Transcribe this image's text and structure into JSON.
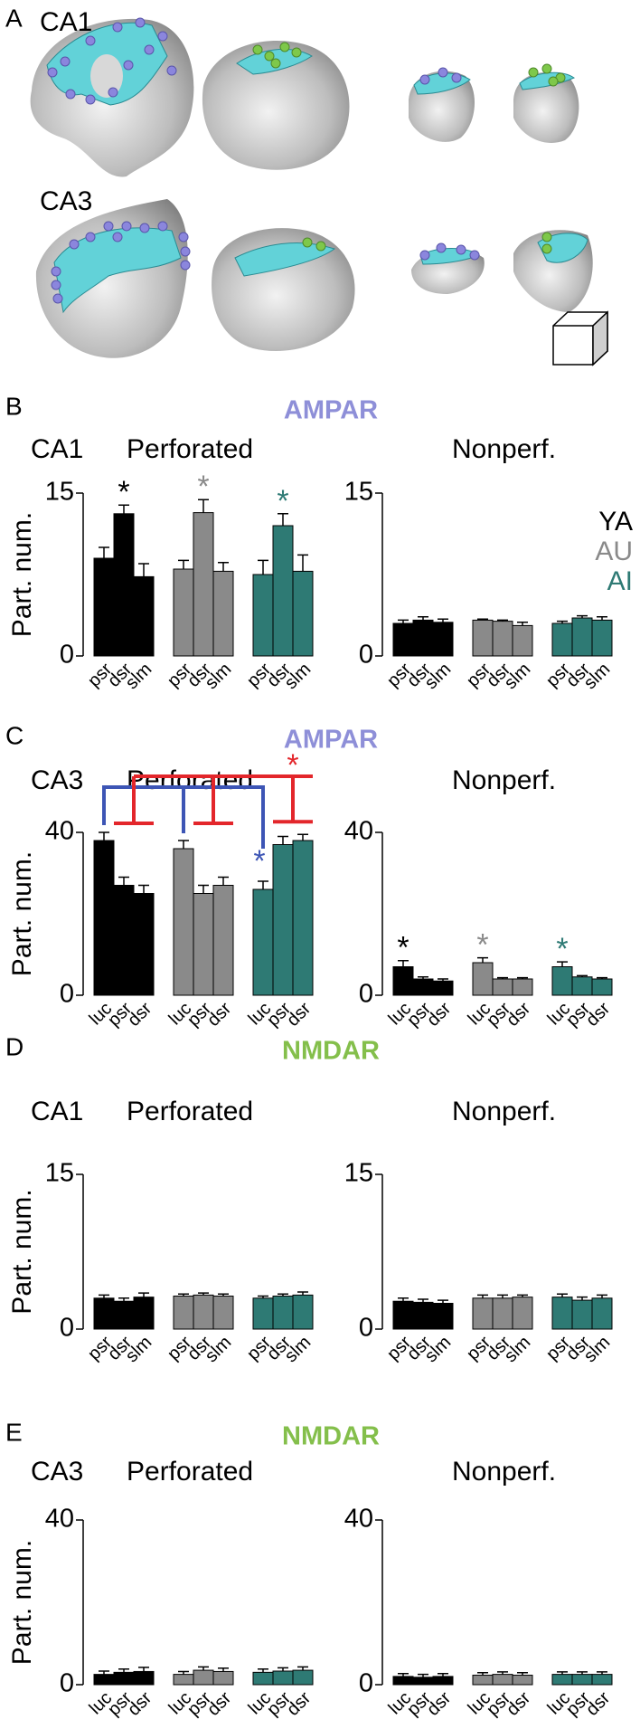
{
  "figure": {
    "panel_a": {
      "label": "A",
      "rows": [
        "CA1",
        "CA3"
      ]
    },
    "sections": [
      {
        "label": "B",
        "receptor": "AMPAR",
        "color": "#8e8fd8"
      },
      {
        "label": "C",
        "receptor": "AMPAR",
        "color": "#8e8fd8"
      },
      {
        "label": "D",
        "receptor": "NMDAR",
        "color": "#84bf4b"
      },
      {
        "label": "E",
        "receptor": "NMDAR",
        "color": "#84bf4b"
      }
    ]
  },
  "chart_data": [
    {
      "type": "bar",
      "region": "CA1",
      "title": "Perforated",
      "ylabel": "Part. num.",
      "categories": [
        "psr",
        "dsr",
        "slm"
      ],
      "ylim": [
        0,
        15
      ],
      "yticks": [
        0,
        15
      ],
      "series": [
        {
          "color": "#000000",
          "values": [
            9,
            13.1,
            7.3
          ],
          "errors": [
            1,
            0.8,
            1.2
          ],
          "stars": [
            null,
            "*",
            null
          ]
        },
        {
          "color": "#8a8a8a",
          "values": [
            8,
            13.2,
            7.8
          ],
          "errors": [
            0.8,
            1.2,
            0.8
          ],
          "stars": [
            null,
            "*",
            null
          ]
        },
        {
          "color": "#2e7a74",
          "values": [
            7.5,
            12,
            7.8
          ],
          "errors": [
            1.3,
            1.1,
            1.5
          ],
          "stars": [
            null,
            "*",
            null
          ]
        }
      ]
    },
    {
      "type": "bar",
      "title": "Nonperf.",
      "legend": "upper right",
      "categories": [
        "psr",
        "dsr",
        "slm"
      ],
      "ylim": [
        0,
        15
      ],
      "yticks": [
        0,
        15
      ],
      "series": [
        {
          "name": "YA",
          "color": "#000000",
          "values": [
            3,
            3.3,
            3.1
          ],
          "errors": [
            0.3,
            0.3,
            0.3
          ]
        },
        {
          "name": "AU",
          "color": "#8a8a8a",
          "values": [
            3.3,
            3.2,
            2.8
          ],
          "errors": [
            0.1,
            0.1,
            0.3
          ]
        },
        {
          "name": "AI",
          "color": "#2e7a74",
          "values": [
            3,
            3.5,
            3.3
          ],
          "errors": [
            0.2,
            0.2,
            0.3
          ]
        }
      ]
    },
    {
      "type": "bar",
      "region": "CA3",
      "title": "Perforated",
      "ylabel": "Part. num.",
      "categories": [
        "luc",
        "psr",
        "dsr"
      ],
      "ylim": [
        0,
        40
      ],
      "yticks": [
        0,
        40
      ],
      "series": [
        {
          "color": "#000000",
          "values": [
            38,
            27,
            25
          ],
          "errors": [
            2,
            2,
            2
          ]
        },
        {
          "color": "#8a8a8a",
          "values": [
            36,
            25,
            27
          ],
          "errors": [
            2,
            2,
            2
          ]
        },
        {
          "color": "#2e7a74",
          "values": [
            26,
            37,
            38
          ],
          "errors": [
            2,
            2,
            1.5
          ]
        }
      ],
      "brackets": [
        {
          "label": "*",
          "color": "#3d55b5"
        },
        {
          "label": "*",
          "color": "#e3262b"
        }
      ]
    },
    {
      "type": "bar",
      "title": "Nonperf.",
      "categories": [
        "luc",
        "psr",
        "dsr"
      ],
      "ylim": [
        0,
        40
      ],
      "yticks": [
        0,
        40
      ],
      "series": [
        {
          "color": "#000000",
          "values": [
            7,
            4,
            3.5
          ],
          "errors": [
            1.5,
            0.5,
            0.5
          ],
          "stars": [
            "*",
            null,
            null
          ]
        },
        {
          "color": "#8a8a8a",
          "values": [
            8,
            4,
            4
          ],
          "errors": [
            1.2,
            0.3,
            0.3
          ],
          "stars": [
            "*",
            null,
            null
          ]
        },
        {
          "color": "#2e7a74",
          "values": [
            7,
            4.5,
            4
          ],
          "errors": [
            1.2,
            0.3,
            0.3
          ],
          "stars": [
            "*",
            null,
            null
          ]
        }
      ]
    },
    {
      "type": "bar",
      "region": "CA1",
      "title": "Perforated",
      "ylabel": "Part. num.",
      "categories": [
        "psr",
        "dsr",
        "slm"
      ],
      "ylim": [
        0,
        15
      ],
      "yticks": [
        0,
        15
      ],
      "series": [
        {
          "color": "#000000",
          "values": [
            3,
            2.7,
            3.1
          ],
          "errors": [
            0.3,
            0.3,
            0.4
          ]
        },
        {
          "color": "#8a8a8a",
          "values": [
            3.2,
            3.3,
            3.2
          ],
          "errors": [
            0.2,
            0.2,
            0.2
          ]
        },
        {
          "color": "#2e7a74",
          "values": [
            3,
            3.2,
            3.3
          ],
          "errors": [
            0.2,
            0.2,
            0.3
          ]
        }
      ]
    },
    {
      "type": "bar",
      "title": "Nonperf.",
      "categories": [
        "psr",
        "dsr",
        "slm"
      ],
      "ylim": [
        0,
        15
      ],
      "yticks": [
        0,
        15
      ],
      "series": [
        {
          "color": "#000000",
          "values": [
            2.7,
            2.6,
            2.5
          ],
          "errors": [
            0.3,
            0.3,
            0.3
          ]
        },
        {
          "color": "#8a8a8a",
          "values": [
            3,
            3,
            3.1
          ],
          "errors": [
            0.3,
            0.3,
            0.2
          ]
        },
        {
          "color": "#2e7a74",
          "values": [
            3.1,
            2.8,
            3
          ],
          "errors": [
            0.3,
            0.3,
            0.3
          ]
        }
      ]
    },
    {
      "type": "bar",
      "region": "CA3",
      "title": "Perforated",
      "ylabel": "Part. num.",
      "categories": [
        "luc",
        "psr",
        "dsr"
      ],
      "ylim": [
        0,
        40
      ],
      "yticks": [
        0,
        40
      ],
      "series": [
        {
          "color": "#000000",
          "values": [
            2.5,
            3,
            3.2
          ],
          "errors": [
            0.8,
            0.8,
            1
          ]
        },
        {
          "color": "#8a8a8a",
          "values": [
            2.5,
            3.5,
            3.2
          ],
          "errors": [
            0.7,
            0.8,
            0.8
          ]
        },
        {
          "color": "#2e7a74",
          "values": [
            3,
            3.3,
            3.5
          ],
          "errors": [
            0.8,
            0.8,
            0.8
          ]
        }
      ]
    },
    {
      "type": "bar",
      "title": "Nonperf.",
      "categories": [
        "luc",
        "psr",
        "dsr"
      ],
      "ylim": [
        0,
        40
      ],
      "yticks": [
        0,
        40
      ],
      "series": [
        {
          "color": "#000000",
          "values": [
            2,
            1.8,
            2
          ],
          "errors": [
            0.7,
            0.7,
            0.7
          ]
        },
        {
          "color": "#8a8a8a",
          "values": [
            2.3,
            2.5,
            2.3
          ],
          "errors": [
            0.6,
            0.6,
            0.6
          ]
        },
        {
          "color": "#2e7a74",
          "values": [
            2.5,
            2.5,
            2.5
          ],
          "errors": [
            0.6,
            0.6,
            0.6
          ]
        }
      ]
    }
  ]
}
